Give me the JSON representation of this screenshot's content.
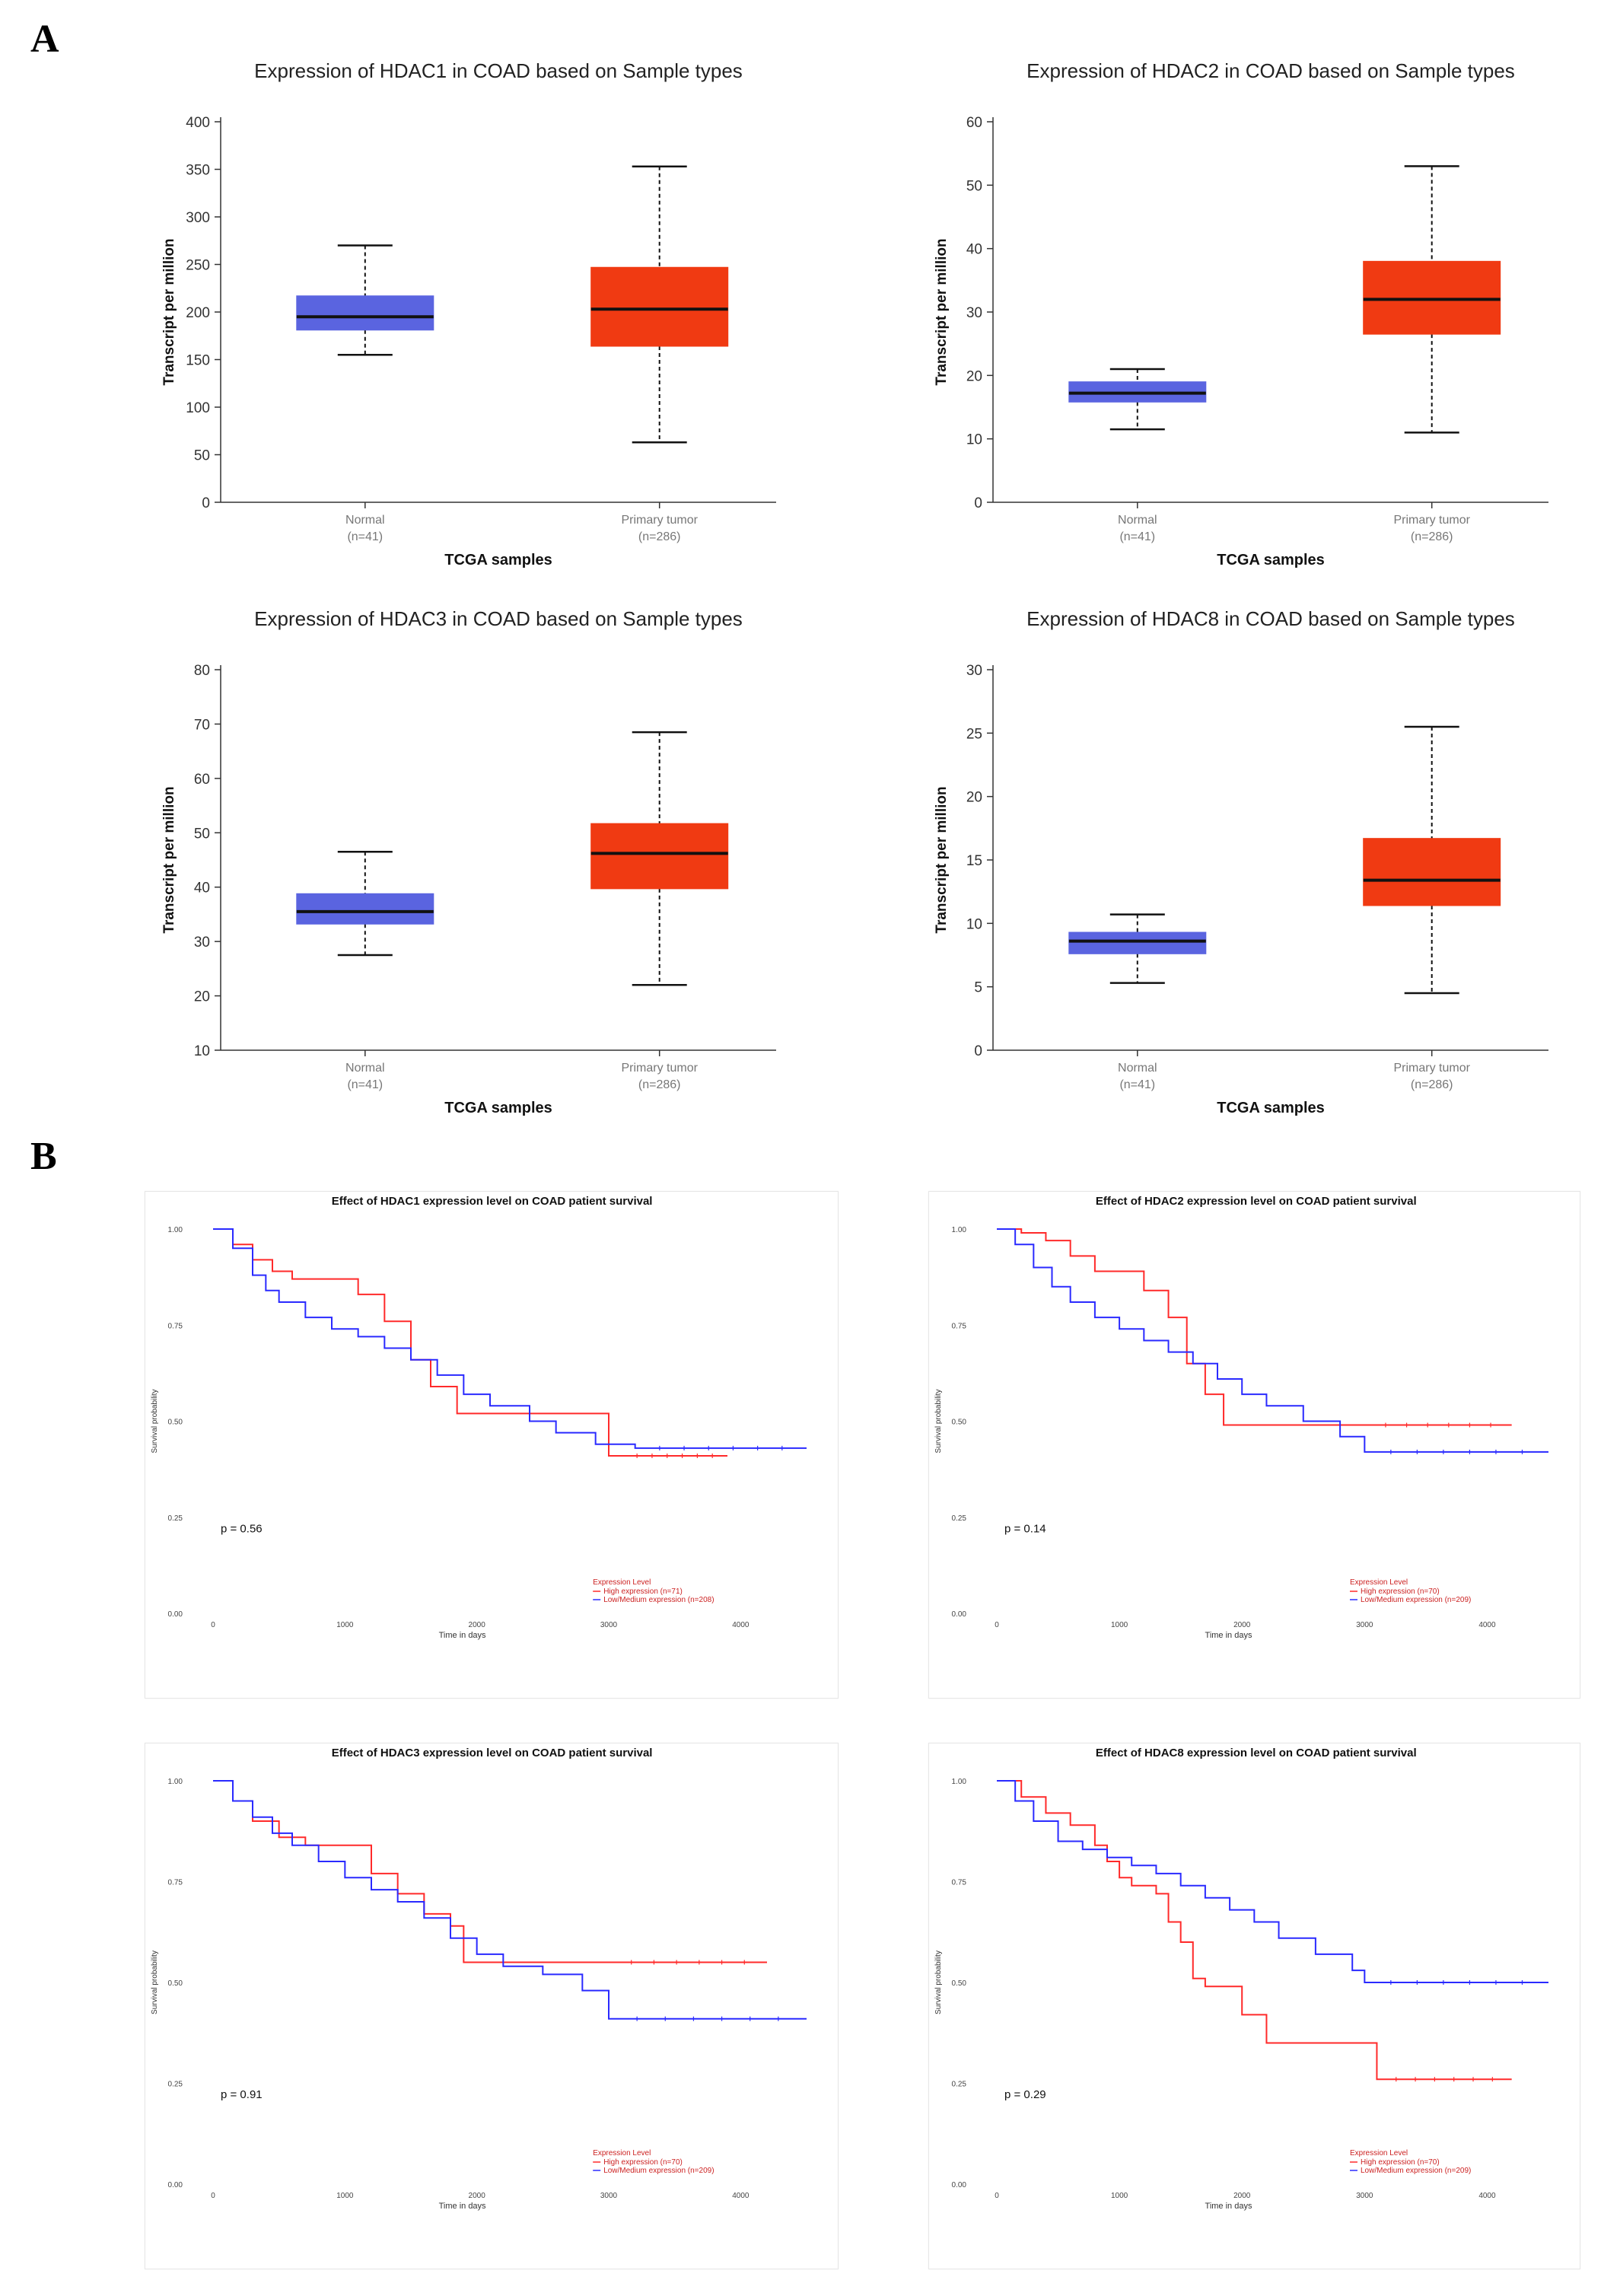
{
  "panels": {
    "A": "A",
    "B": "B"
  },
  "colors": {
    "normal": "#5a64e0",
    "tumor": "#f03a12",
    "km_high": "#ff2a2a",
    "km_low": "#2a2aff",
    "legend_text": "#cc2222"
  },
  "chart_data": [
    {
      "type": "box",
      "title": "Expression of HDAC1 in COAD based on Sample types",
      "xlabel": "TCGA samples",
      "ylabel": "Transcript per million",
      "ylim": [
        0,
        400
      ],
      "yticks": [
        0,
        50,
        100,
        150,
        200,
        250,
        300,
        350,
        400
      ],
      "groups": [
        {
          "name": "Normal",
          "n": "(n=41)",
          "min": 155,
          "q1": 181,
          "median": 195,
          "q3": 217,
          "max": 270
        },
        {
          "name": "Primary tumor",
          "n": "(n=286)",
          "min": 63,
          "q1": 164,
          "median": 203,
          "q3": 247,
          "max": 353
        }
      ]
    },
    {
      "type": "box",
      "title": "Expression of HDAC2 in COAD based on Sample types",
      "xlabel": "TCGA samples",
      "ylabel": "Transcript per million",
      "ylim": [
        0,
        60
      ],
      "yticks": [
        0,
        10,
        20,
        30,
        40,
        50,
        60
      ],
      "groups": [
        {
          "name": "Normal",
          "n": "(n=41)",
          "min": 11.5,
          "q1": 15.8,
          "median": 17.2,
          "q3": 19,
          "max": 21
        },
        {
          "name": "Primary tumor",
          "n": "(n=286)",
          "min": 11,
          "q1": 26.5,
          "median": 32,
          "q3": 38,
          "max": 53
        }
      ]
    },
    {
      "type": "box",
      "title": "Expression of HDAC3 in COAD based on Sample types",
      "xlabel": "TCGA samples",
      "ylabel": "Transcript per million",
      "ylim": [
        10,
        80
      ],
      "yticks": [
        10,
        20,
        30,
        40,
        50,
        60,
        70,
        80
      ],
      "groups": [
        {
          "name": "Normal",
          "n": "(n=41)",
          "min": 27.5,
          "q1": 33.2,
          "median": 35.5,
          "q3": 38.8,
          "max": 46.5
        },
        {
          "name": "Primary tumor",
          "n": "(n=286)",
          "min": 22,
          "q1": 39.7,
          "median": 46.2,
          "q3": 51.7,
          "max": 68.5
        }
      ]
    },
    {
      "type": "box",
      "title": "Expression of HDAC8 in COAD based on Sample types",
      "xlabel": "TCGA samples",
      "ylabel": "Transcript per million",
      "ylim": [
        0,
        30
      ],
      "yticks": [
        0,
        5,
        10,
        15,
        20,
        25,
        30
      ],
      "groups": [
        {
          "name": "Normal",
          "n": "(n=41)",
          "min": 5.3,
          "q1": 7.6,
          "median": 8.6,
          "q3": 9.3,
          "max": 10.7
        },
        {
          "name": "Primary tumor",
          "n": "(n=286)",
          "min": 4.5,
          "q1": 11.4,
          "median": 13.4,
          "q3": 16.7,
          "max": 25.5
        }
      ]
    },
    {
      "type": "line",
      "subtype": "kaplan-meier",
      "title": "Effect of HDAC1 expression level on COAD patient survival",
      "xlabel": "Time in days",
      "ylabel": "Survival probability",
      "xlim": [
        0,
        4500
      ],
      "ylim": [
        0,
        1
      ],
      "xticks": [
        0,
        1000,
        2000,
        3000,
        4000
      ],
      "yticks": [
        "0.00",
        "0.25",
        "0.50",
        "0.75",
        "1.00"
      ],
      "p_value": "p = 0.56",
      "legend_title": "Expression Level",
      "series": [
        {
          "name": "High expression (n=71)",
          "color": "#ff2a2a",
          "x": [
            0,
            150,
            300,
            450,
            600,
            900,
            1100,
            1300,
            1500,
            1650,
            1850,
            2100,
            2500,
            3000,
            3100,
            3900
          ],
          "y": [
            1.0,
            0.96,
            0.92,
            0.89,
            0.87,
            0.87,
            0.83,
            0.76,
            0.66,
            0.59,
            0.52,
            0.52,
            0.52,
            0.41,
            0.41,
            0.41
          ]
        },
        {
          "name": "Low/Medium expression (n=208)",
          "color": "#2a2aff",
          "x": [
            0,
            150,
            300,
            400,
            500,
            700,
            900,
            1100,
            1300,
            1500,
            1700,
            1900,
            2100,
            2400,
            2600,
            2900,
            3200,
            4500
          ],
          "y": [
            1.0,
            0.95,
            0.88,
            0.84,
            0.81,
            0.77,
            0.74,
            0.72,
            0.69,
            0.66,
            0.62,
            0.57,
            0.54,
            0.5,
            0.47,
            0.44,
            0.43,
            0.43
          ]
        }
      ]
    },
    {
      "type": "line",
      "subtype": "kaplan-meier",
      "title": "Effect of HDAC2 expression level on COAD patient survival",
      "xlabel": "Time in days",
      "ylabel": "Survival probability",
      "xlim": [
        0,
        4500
      ],
      "ylim": [
        0,
        1
      ],
      "xticks": [
        0,
        1000,
        2000,
        3000,
        4000
      ],
      "yticks": [
        "0.00",
        "0.25",
        "0.50",
        "0.75",
        "1.00"
      ],
      "p_value": "p = 0.14",
      "legend_title": "Expression Level",
      "series": [
        {
          "name": "High expression (n=70)",
          "color": "#ff2a2a",
          "x": [
            0,
            200,
            400,
            600,
            800,
            1000,
            1200,
            1400,
            1550,
            1700,
            1850,
            2000,
            3000,
            4200
          ],
          "y": [
            1.0,
            0.99,
            0.97,
            0.93,
            0.89,
            0.89,
            0.84,
            0.77,
            0.65,
            0.57,
            0.49,
            0.49,
            0.49,
            0.49
          ]
        },
        {
          "name": "Low/Medium expression (n=209)",
          "color": "#2a2aff",
          "x": [
            0,
            150,
            300,
            450,
            600,
            800,
            1000,
            1200,
            1400,
            1600,
            1800,
            2000,
            2200,
            2500,
            2800,
            3000,
            4500
          ],
          "y": [
            1.0,
            0.96,
            0.9,
            0.85,
            0.81,
            0.77,
            0.74,
            0.71,
            0.68,
            0.65,
            0.61,
            0.57,
            0.54,
            0.5,
            0.46,
            0.42,
            0.42
          ]
        }
      ]
    },
    {
      "type": "line",
      "subtype": "kaplan-meier",
      "title": "Effect of HDAC3 expression level on COAD patient survival",
      "xlabel": "Time in days",
      "ylabel": "Survival probability",
      "xlim": [
        0,
        4500
      ],
      "ylim": [
        0,
        1
      ],
      "xticks": [
        0,
        1000,
        2000,
        3000,
        4000
      ],
      "yticks": [
        "0.00",
        "0.25",
        "0.50",
        "0.75",
        "1.00"
      ],
      "p_value": "p = 0.91",
      "legend_title": "Expression Level",
      "series": [
        {
          "name": "High expression (n=70)",
          "color": "#ff2a2a",
          "x": [
            0,
            150,
            300,
            500,
            700,
            1000,
            1200,
            1400,
            1600,
            1800,
            1900,
            2000,
            2300,
            3000,
            4200
          ],
          "y": [
            1.0,
            0.95,
            0.9,
            0.86,
            0.84,
            0.84,
            0.77,
            0.72,
            0.67,
            0.64,
            0.55,
            0.55,
            0.55,
            0.55,
            0.55
          ]
        },
        {
          "name": "Low/Medium expression (n=209)",
          "color": "#2a2aff",
          "x": [
            0,
            150,
            300,
            450,
            600,
            800,
            1000,
            1200,
            1400,
            1600,
            1800,
            2000,
            2200,
            2500,
            2800,
            3000,
            4500
          ],
          "y": [
            1.0,
            0.95,
            0.91,
            0.87,
            0.84,
            0.8,
            0.76,
            0.73,
            0.7,
            0.66,
            0.61,
            0.57,
            0.54,
            0.52,
            0.48,
            0.41,
            0.41
          ]
        }
      ]
    },
    {
      "type": "line",
      "subtype": "kaplan-meier",
      "title": "Effect of HDAC8 expression level on COAD patient survival",
      "xlabel": "Time in days",
      "ylabel": "Survival probability",
      "xlim": [
        0,
        4500
      ],
      "ylim": [
        0,
        1
      ],
      "xticks": [
        0,
        1000,
        2000,
        3000,
        4000
      ],
      "yticks": [
        "0.00",
        "0.25",
        "0.50",
        "0.75",
        "1.00"
      ],
      "p_value": "p = 0.29",
      "legend_title": "Expression Level",
      "series": [
        {
          "name": "High expression (n=70)",
          "color": "#ff2a2a",
          "x": [
            0,
            200,
            400,
            600,
            800,
            900,
            1000,
            1100,
            1300,
            1400,
            1500,
            1600,
            1700,
            1900,
            2000,
            2200,
            3000,
            3100,
            4200
          ],
          "y": [
            1.0,
            0.96,
            0.92,
            0.89,
            0.84,
            0.8,
            0.76,
            0.74,
            0.72,
            0.65,
            0.6,
            0.51,
            0.49,
            0.49,
            0.42,
            0.35,
            0.35,
            0.26,
            0.26
          ]
        },
        {
          "name": "Low/Medium expression (n=209)",
          "color": "#2a2aff",
          "x": [
            0,
            150,
            300,
            500,
            700,
            900,
            1100,
            1300,
            1500,
            1700,
            1900,
            2100,
            2300,
            2600,
            2900,
            3000,
            4500
          ],
          "y": [
            1.0,
            0.95,
            0.9,
            0.85,
            0.83,
            0.81,
            0.79,
            0.77,
            0.74,
            0.71,
            0.68,
            0.65,
            0.61,
            0.57,
            0.53,
            0.5,
            0.5
          ]
        }
      ]
    }
  ]
}
